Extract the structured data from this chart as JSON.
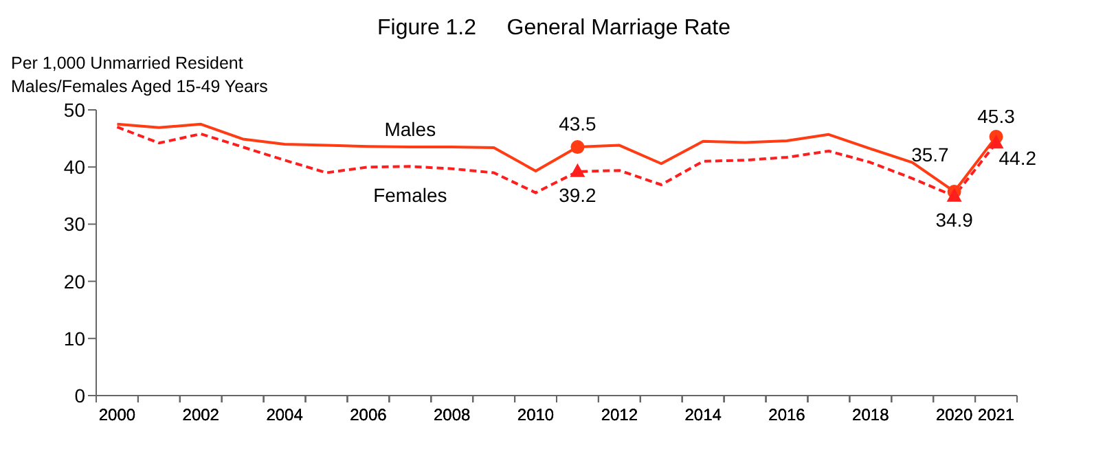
{
  "chart_data": {
    "type": "line",
    "title": "Figure 1.2     General Marriage Rate",
    "ylabel": "Per 1,000 Unmarried Resident\nMales/Females Aged 15-49 Years",
    "categories": [
      "2000",
      null,
      "2002",
      null,
      "2004",
      null,
      "2006",
      null,
      "2008",
      null,
      "2010",
      null,
      "2012",
      null,
      "2014",
      null,
      "2016",
      null,
      "2018",
      null,
      "2020",
      "2021"
    ],
    "series": [
      {
        "name": "Males",
        "color": "#ff3c14",
        "line_style": "solid",
        "values": [
          47.5,
          46.9,
          47.5,
          44.9,
          44.0,
          43.8,
          43.6,
          43.5,
          43.5,
          43.4,
          39.3,
          43.5,
          43.8,
          40.6,
          44.5,
          44.3,
          44.6,
          45.7,
          43.2,
          40.8,
          35.7,
          45.3
        ]
      },
      {
        "name": "Females",
        "color": "#ff1e1e",
        "line_style": "dashed",
        "values": [
          47.0,
          44.2,
          45.8,
          43.5,
          41.2,
          39.0,
          40.0,
          40.1,
          39.7,
          39.0,
          35.5,
          39.2,
          39.4,
          36.9,
          41.0,
          41.2,
          41.7,
          42.8,
          40.8,
          38.0,
          34.9,
          44.2
        ]
      },
      {
        "type": "scatter",
        "color": "#ff3c14",
        "marker": "circle",
        "values": [
          null,
          null,
          null,
          null,
          null,
          null,
          null,
          null,
          null,
          null,
          null,
          43.5,
          null,
          null,
          null,
          null,
          null,
          null,
          null,
          null,
          35.7,
          45.3
        ],
        "data_labels": true
      },
      {
        "type": "scatter",
        "color": "#ff1e1e",
        "marker": "triangle",
        "values": [
          null,
          null,
          null,
          null,
          null,
          null,
          null,
          null,
          null,
          null,
          null,
          39.2,
          null,
          null,
          null,
          null,
          null,
          null,
          null,
          null,
          34.9,
          44.2
        ],
        "data_labels": true
      }
    ],
    "ylim": [
      0,
      50
    ],
    "yticks": [
      0,
      10,
      20,
      30,
      40,
      50
    ],
    "grid": false,
    "legend": false
  }
}
